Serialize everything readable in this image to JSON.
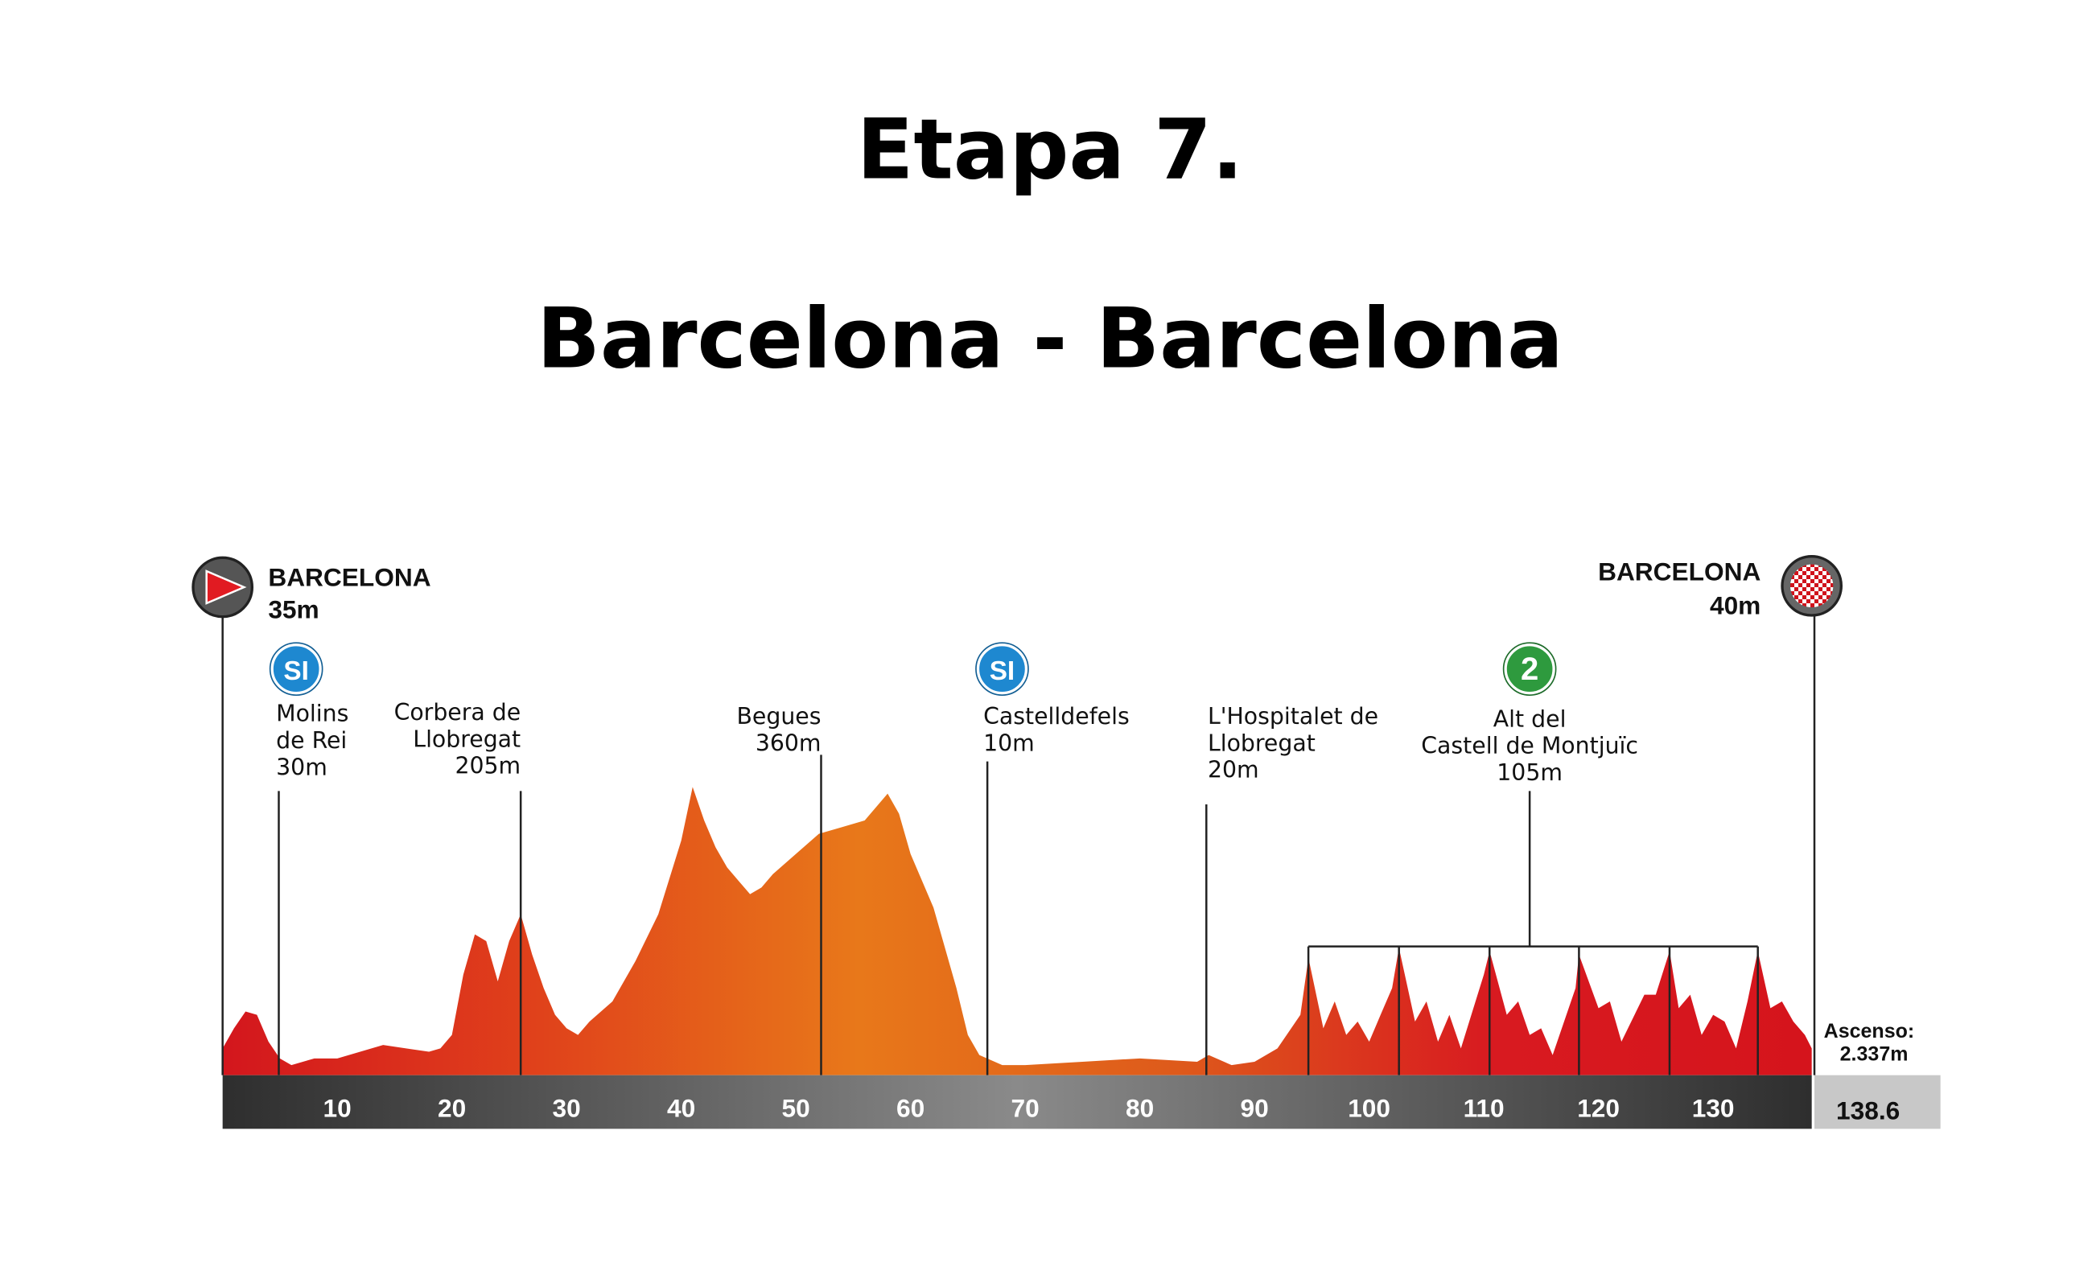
{
  "chart_data": {
    "type": "area",
    "title": "Etapa 7.",
    "subtitle": "Barcelona - Barcelona",
    "colors": [
      "#d3161d",
      "#e0421b",
      "#e8781a",
      "#de5a1b",
      "#d81a20",
      "#d5141c"
    ],
    "xlim": [
      0,
      138.6
    ],
    "ylim": [
      0,
      440
    ],
    "xticks": [
      10,
      20,
      30,
      40,
      50,
      60,
      70,
      80,
      90,
      100,
      110,
      120,
      130
    ],
    "x": [
      0,
      1,
      2,
      3,
      4,
      5,
      6,
      8,
      10,
      12,
      14,
      16,
      18,
      19,
      20,
      21,
      22,
      23,
      24,
      25,
      26,
      27,
      28,
      29,
      30,
      31,
      32,
      34,
      36,
      38,
      40,
      41,
      42,
      43,
      44,
      45,
      46,
      47,
      48,
      50,
      52,
      54,
      56,
      58,
      59,
      60,
      62,
      64,
      65,
      66,
      68,
      70,
      75,
      80,
      85,
      86,
      88,
      90,
      92,
      94,
      94.7,
      96,
      97,
      98,
      99,
      100,
      101,
      102,
      102.6,
      104,
      105,
      106,
      107,
      108,
      110,
      110.5,
      112,
      113,
      114,
      115,
      116,
      118,
      118.3,
      120,
      121,
      122,
      124,
      125,
      126.2,
      127,
      128,
      129,
      130,
      131,
      132,
      133,
      133.9,
      135,
      136,
      137,
      138,
      138.6
    ],
    "values": [
      40,
      70,
      95,
      90,
      50,
      25,
      15,
      25,
      25,
      35,
      45,
      40,
      35,
      40,
      60,
      150,
      210,
      200,
      140,
      200,
      240,
      180,
      130,
      90,
      70,
      60,
      80,
      110,
      170,
      240,
      350,
      430,
      380,
      340,
      310,
      290,
      270,
      280,
      300,
      330,
      360,
      370,
      380,
      420,
      390,
      330,
      250,
      130,
      60,
      30,
      15,
      15,
      20,
      25,
      20,
      30,
      15,
      20,
      40,
      90,
      175,
      70,
      110,
      60,
      80,
      50,
      90,
      130,
      190,
      80,
      110,
      50,
      90,
      40,
      150,
      185,
      90,
      110,
      60,
      70,
      30,
      130,
      180,
      100,
      110,
      50,
      120,
      120,
      185,
      100,
      120,
      60,
      90,
      80,
      40,
      110,
      185,
      100,
      110,
      80,
      60,
      40
    ],
    "total_distance": 138.6,
    "start": {
      "name": "BARCELONA",
      "elevation": "35m"
    },
    "finish": {
      "name": "BARCELONA",
      "elevation": "40m"
    },
    "climbing": {
      "label": "Ascenso:",
      "value": "2.337m"
    },
    "waypoints": [
      {
        "km": 4.9,
        "icon": "SI",
        "label": [
          "Molins",
          "de Rei",
          "30m"
        ]
      },
      {
        "km": 26,
        "label": [
          "Corbera de",
          "Llobregat",
          "205m"
        ]
      },
      {
        "km": 52.2,
        "label": [
          "Begues",
          "360m"
        ]
      },
      {
        "km": 66.7,
        "icon": "SI",
        "label": [
          "Castelldefels",
          "10m"
        ]
      },
      {
        "km": 85.8,
        "label": [
          "L'Hospitalet de",
          "Llobregat",
          "20m"
        ]
      },
      {
        "km": 114,
        "icon": "2",
        "label": [
          "Alt del",
          "Castell de Montjuïc",
          "105m"
        ]
      }
    ],
    "circuit_km": [
      94.7,
      102.6,
      110.5,
      118.3,
      126.2,
      133.9
    ]
  }
}
